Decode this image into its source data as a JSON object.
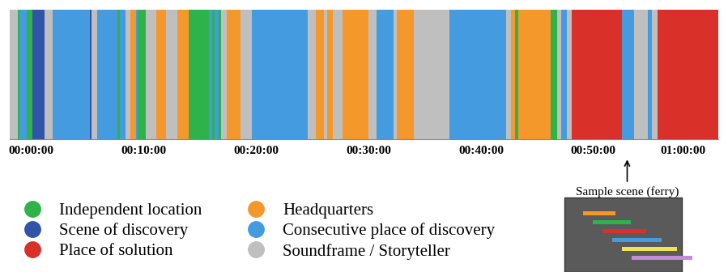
{
  "chart_data": {
    "type": "timeline",
    "categories": [
      {
        "name": "Independent location",
        "color": "#2db34a"
      },
      {
        "name": "Scene of discovery",
        "color": "#2f55a8"
      },
      {
        "name": "Place of solution",
        "color": "#d9302a"
      },
      {
        "name": "Headquarters",
        "color": "#f5982b"
      },
      {
        "name": "Consecutive place of discovery",
        "color": "#449be0"
      },
      {
        "name": "Soundframe / Storyteller",
        "color": "#bfbfbf"
      }
    ],
    "segments": [
      {
        "start": -1.9,
        "end": -1.2,
        "category": "Soundframe / Storyteller"
      },
      {
        "start": -1.2,
        "end": -1.0,
        "category": "Independent location"
      },
      {
        "start": -1.0,
        "end": -0.4,
        "category": "Consecutive place of discovery"
      },
      {
        "start": -0.4,
        "end": 0.1,
        "category": "Independent location"
      },
      {
        "start": 0.1,
        "end": 1.2,
        "category": "Scene of discovery"
      },
      {
        "start": 1.2,
        "end": 1.9,
        "category": "Soundframe / Storyteller"
      },
      {
        "start": 1.9,
        "end": 5.2,
        "category": "Consecutive place of discovery"
      },
      {
        "start": 5.2,
        "end": 5.4,
        "category": "Scene of discovery"
      },
      {
        "start": 5.4,
        "end": 5.9,
        "category": "Soundframe / Storyteller"
      },
      {
        "start": 5.9,
        "end": 7.7,
        "category": "Consecutive place of discovery"
      },
      {
        "start": 7.7,
        "end": 7.9,
        "category": "Independent location"
      },
      {
        "start": 7.9,
        "end": 8.4,
        "category": "Consecutive place of discovery"
      },
      {
        "start": 8.4,
        "end": 8.8,
        "category": "Soundframe / Storyteller"
      },
      {
        "start": 8.8,
        "end": 9.3,
        "category": "Headquarters"
      },
      {
        "start": 9.3,
        "end": 9.5,
        "category": "Consecutive place of discovery"
      },
      {
        "start": 9.5,
        "end": 10.2,
        "category": "Independent location"
      },
      {
        "start": 10.2,
        "end": 11.1,
        "category": "Soundframe / Storyteller"
      },
      {
        "start": 11.1,
        "end": 12.0,
        "category": "Headquarters"
      },
      {
        "start": 12.0,
        "end": 13.0,
        "category": "Soundframe / Storyteller"
      },
      {
        "start": 13.0,
        "end": 14.0,
        "category": "Headquarters"
      },
      {
        "start": 14.0,
        "end": 15.8,
        "category": "Independent location"
      },
      {
        "start": 15.8,
        "end": 16.1,
        "category": "Consecutive place of discovery"
      },
      {
        "start": 16.1,
        "end": 16.3,
        "category": "Independent location"
      },
      {
        "start": 16.3,
        "end": 16.7,
        "category": "Consecutive place of discovery"
      },
      {
        "start": 16.7,
        "end": 16.9,
        "category": "Independent location"
      },
      {
        "start": 16.9,
        "end": 17.4,
        "category": "Soundframe / Storyteller"
      },
      {
        "start": 17.4,
        "end": 18.6,
        "category": "Headquarters"
      },
      {
        "start": 18.6,
        "end": 19.6,
        "category": "Soundframe / Storyteller"
      },
      {
        "start": 19.6,
        "end": 24.6,
        "category": "Consecutive place of discovery"
      },
      {
        "start": 24.6,
        "end": 25.3,
        "category": "Soundframe / Storyteller"
      },
      {
        "start": 25.3,
        "end": 26.0,
        "category": "Headquarters"
      },
      {
        "start": 26.0,
        "end": 26.3,
        "category": "Soundframe / Storyteller"
      },
      {
        "start": 26.3,
        "end": 26.8,
        "category": "Headquarters"
      },
      {
        "start": 26.8,
        "end": 27.7,
        "category": "Soundframe / Storyteller"
      },
      {
        "start": 27.7,
        "end": 30.0,
        "category": "Headquarters"
      },
      {
        "start": 30.0,
        "end": 30.7,
        "category": "Soundframe / Storyteller"
      },
      {
        "start": 30.7,
        "end": 32.2,
        "category": "Consecutive place of discovery"
      },
      {
        "start": 32.2,
        "end": 32.5,
        "category": "Soundframe / Storyteller"
      },
      {
        "start": 32.5,
        "end": 34.0,
        "category": "Headquarters"
      },
      {
        "start": 34.0,
        "end": 37.2,
        "category": "Soundframe / Storyteller"
      },
      {
        "start": 37.2,
        "end": 42.2,
        "category": "Consecutive place of discovery"
      },
      {
        "start": 42.2,
        "end": 42.7,
        "category": "Soundframe / Storyteller"
      },
      {
        "start": 42.7,
        "end": 43.0,
        "category": "Headquarters"
      },
      {
        "start": 43.0,
        "end": 43.3,
        "category": "Independent location"
      },
      {
        "start": 43.3,
        "end": 46.2,
        "category": "Headquarters"
      },
      {
        "start": 46.2,
        "end": 46.8,
        "category": "Independent location"
      },
      {
        "start": 46.8,
        "end": 47.1,
        "category": "Soundframe / Storyteller"
      },
      {
        "start": 47.1,
        "end": 47.6,
        "category": "Consecutive place of discovery"
      },
      {
        "start": 47.6,
        "end": 48.1,
        "category": "Soundframe / Storyteller"
      },
      {
        "start": 48.1,
        "end": 52.5,
        "category": "Place of solution"
      },
      {
        "start": 52.5,
        "end": 53.6,
        "category": "Consecutive place of discovery"
      },
      {
        "start": 53.6,
        "end": 54.8,
        "category": "Soundframe / Storyteller"
      },
      {
        "start": 54.8,
        "end": 55.2,
        "category": "Consecutive place of discovery"
      },
      {
        "start": 55.2,
        "end": 55.7,
        "category": "Soundframe / Storyteller"
      },
      {
        "start": 55.7,
        "end": 61.1,
        "category": "Place of solution"
      }
    ],
    "xlim": [
      -1.9,
      61.1
    ],
    "xticks": [
      {
        "value": 0,
        "label": "00:00:00"
      },
      {
        "value": 10,
        "label": "00:10:00"
      },
      {
        "value": 20,
        "label": "00:20:00"
      },
      {
        "value": 30,
        "label": "00:30:00"
      },
      {
        "value": 40,
        "label": "00:40:00"
      },
      {
        "value": 50,
        "label": "00:50:00"
      },
      {
        "value": 60,
        "label": "01:00:00"
      }
    ],
    "annotations": [
      {
        "text": "Sample scene (ferry)",
        "x": 53.0
      }
    ],
    "legend": "lower left",
    "tick_labels": "x"
  }
}
